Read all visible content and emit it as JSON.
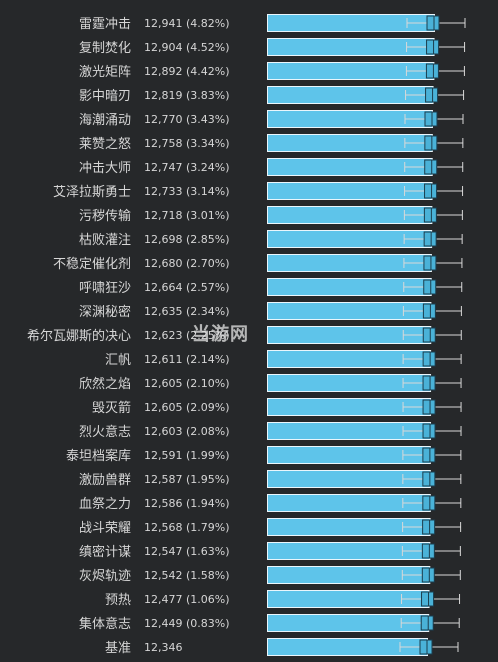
{
  "chart_data": {
    "type": "bar",
    "categories": [
      "雷霆冲击",
      "复制焚化",
      "激光矩阵",
      "影中暗刃",
      "海潮涌动",
      "莱赞之怒",
      "冲击大师",
      "艾泽拉斯勇士",
      "污秽传输",
      "枯败灌注",
      "不稳定催化剂",
      "呼啸狂沙",
      "深渊秘密",
      "希尔瓦娜斯的决心",
      "汇帆",
      "欣然之焰",
      "毁灭箭",
      "烈火意志",
      "泰坦档案库",
      "激励兽群",
      "血祭之力",
      "战斗荣耀",
      "缜密计谋",
      "灰烬轨迹",
      "预热",
      "集体意志",
      "基准"
    ],
    "values": [
      12941,
      12904,
      12892,
      12819,
      12770,
      12758,
      12747,
      12733,
      12718,
      12698,
      12680,
      12664,
      12635,
      12623,
      12611,
      12605,
      12605,
      12603,
      12591,
      12587,
      12586,
      12568,
      12547,
      12542,
      12477,
      12449,
      12346
    ],
    "value_labels": [
      "12,941 (4.82%)",
      "12,904 (4.52%)",
      "12,892 (4.42%)",
      "12,819 (3.83%)",
      "12,770 (3.43%)",
      "12,758 (3.34%)",
      "12,747 (3.24%)",
      "12,733 (3.14%)",
      "12,718 (3.01%)",
      "12,698 (2.85%)",
      "12,680 (2.70%)",
      "12,664 (2.57%)",
      "12,635 (2.34%)",
      "12,623 (2.25%)",
      "12,611 (2.14%)",
      "12,605 (2.10%)",
      "12,605 (2.09%)",
      "12,603 (2.08%)",
      "12,591 (1.99%)",
      "12,587 (1.95%)",
      "12,586 (1.94%)",
      "12,568 (1.79%)",
      "12,547 (1.63%)",
      "12,542 (1.58%)",
      "12,477 (1.06%)",
      "12,449 (0.83%)",
      "12,346"
    ],
    "title": "",
    "xlabel": "",
    "ylabel": "",
    "orientation": "horizontal",
    "grid": false,
    "colors": {
      "background": "#26282a",
      "bar": "#5ec4ea",
      "bar_border": "#eaf6fc",
      "box": "#4ab2d8",
      "text": "#d6d6d6",
      "whisker": "#d8d8d8"
    }
  },
  "watermark": "当游网"
}
